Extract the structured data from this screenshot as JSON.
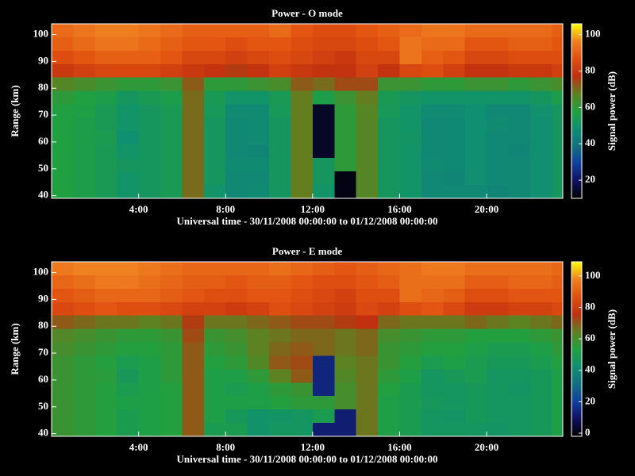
{
  "chart_data": [
    {
      "type": "heatmap",
      "title": "Power - O mode",
      "xlabel": "Universal time - 30/11/2008 00:00:00 to 01/12/2008 00:00:00",
      "ylabel": "Range (km)",
      "colorbar_label": "Signal power (dB)",
      "xlim": [
        0,
        23.5
      ],
      "ylim": [
        39,
        104
      ],
      "clim": [
        10,
        106
      ],
      "xticks": [
        {
          "value": 4,
          "label": "4:00"
        },
        {
          "value": 8,
          "label": "8:00"
        },
        {
          "value": 12,
          "label": "12:00"
        },
        {
          "value": 16,
          "label": "16:00"
        },
        {
          "value": 20,
          "label": "20:00"
        }
      ],
      "yticks": [
        40,
        50,
        60,
        70,
        80,
        90,
        100
      ],
      "cticks": [
        20,
        40,
        60,
        80,
        100
      ],
      "colors": [
        "#000000",
        "#101060",
        "#1040a0",
        "#107080",
        "#109070",
        "#20a040",
        "#608020",
        "#c03010",
        "#e05010",
        "#f08020",
        "#ffff00"
      ],
      "xbins": [
        0,
        1,
        2,
        3,
        4,
        5,
        6,
        7,
        8,
        9,
        10,
        11,
        12,
        13,
        14,
        15,
        16,
        17,
        18,
        19,
        20,
        21,
        22,
        23,
        23.5
      ],
      "ybins": [
        39,
        44,
        49,
        54,
        59,
        64,
        69,
        74,
        79,
        84,
        89,
        94,
        99,
        104
      ],
      "values": [
        [
          58,
          56,
          54,
          50,
          52,
          54,
          70,
          50,
          46,
          47,
          52,
          68,
          50,
          12,
          66,
          52,
          50,
          46,
          46,
          46,
          45,
          46,
          48,
          52
        ],
        [
          58,
          56,
          54,
          50,
          52,
          54,
          70,
          52,
          46,
          46,
          52,
          68,
          52,
          12,
          66,
          52,
          50,
          46,
          45,
          48,
          46,
          46,
          48,
          52
        ],
        [
          58,
          56,
          54,
          52,
          52,
          54,
          70,
          52,
          47,
          47,
          52,
          68,
          52,
          60,
          66,
          52,
          50,
          47,
          46,
          48,
          46,
          46,
          48,
          52
        ],
        [
          58,
          56,
          54,
          50,
          52,
          54,
          70,
          52,
          46,
          45,
          52,
          68,
          14,
          60,
          66,
          52,
          50,
          46,
          46,
          48,
          46,
          45,
          48,
          52
        ],
        [
          58,
          56,
          55,
          48,
          52,
          54,
          70,
          52,
          46,
          47,
          52,
          68,
          14,
          60,
          66,
          52,
          51,
          46,
          46,
          48,
          46,
          46,
          48,
          52
        ],
        [
          58,
          56,
          54,
          50,
          52,
          54,
          70,
          52,
          46,
          47,
          52,
          68,
          14,
          60,
          66,
          52,
          50,
          46,
          46,
          48,
          47,
          46,
          48,
          52
        ],
        [
          58,
          57,
          54,
          50,
          52,
          54,
          70,
          53,
          47,
          47,
          53,
          68,
          14,
          60,
          66,
          53,
          50,
          47,
          47,
          48,
          46,
          46,
          49,
          52
        ],
        [
          60,
          58,
          56,
          52,
          54,
          56,
          70,
          54,
          50,
          50,
          54,
          68,
          56,
          62,
          68,
          54,
          52,
          50,
          50,
          50,
          50,
          50,
          52,
          56
        ],
        [
          66,
          64,
          62,
          60,
          60,
          62,
          72,
          60,
          60,
          62,
          64,
          72,
          70,
          74,
          74,
          62,
          62,
          60,
          60,
          62,
          62,
          60,
          62,
          64
        ],
        [
          80,
          82,
          84,
          84,
          84,
          82,
          80,
          78,
          76,
          78,
          82,
          80,
          78,
          78,
          82,
          78,
          84,
          86,
          82,
          78,
          78,
          80,
          80,
          82
        ],
        [
          86,
          88,
          90,
          90,
          90,
          88,
          84,
          84,
          82,
          84,
          86,
          84,
          82,
          80,
          84,
          84,
          94,
          90,
          88,
          84,
          84,
          86,
          86,
          86
        ],
        [
          90,
          92,
          94,
          94,
          92,
          90,
          88,
          88,
          86,
          88,
          88,
          86,
          84,
          84,
          86,
          88,
          94,
          92,
          92,
          88,
          88,
          90,
          90,
          88
        ],
        [
          92,
          94,
          96,
          96,
          94,
          92,
          90,
          90,
          90,
          90,
          92,
          88,
          86,
          86,
          88,
          90,
          92,
          94,
          94,
          92,
          92,
          92,
          92,
          90
        ]
      ]
    },
    {
      "type": "heatmap",
      "title": "Power - E mode",
      "xlabel": "Universal time - 30/11/2008 00:00:00 to 01/12/2008 00:00:00",
      "ylabel": "Range (km)",
      "colorbar_label": "Signal power (dB)",
      "xlim": [
        0,
        23.5
      ],
      "ylim": [
        39,
        104
      ],
      "clim": [
        -2,
        109
      ],
      "xticks": [
        {
          "value": 4,
          "label": "4:00"
        },
        {
          "value": 8,
          "label": "8:00"
        },
        {
          "value": 12,
          "label": "12:00"
        },
        {
          "value": 16,
          "label": "16:00"
        },
        {
          "value": 20,
          "label": "20:00"
        }
      ],
      "yticks": [
        40,
        50,
        60,
        70,
        80,
        90,
        100
      ],
      "cticks": [
        0,
        20,
        40,
        60,
        80,
        100
      ],
      "colors": [
        "#000000",
        "#101060",
        "#1040a0",
        "#107080",
        "#109070",
        "#20a040",
        "#608020",
        "#c03010",
        "#e05010",
        "#f08020",
        "#ffff00"
      ],
      "xbins": [
        0,
        1,
        2,
        3,
        4,
        5,
        6,
        7,
        8,
        9,
        10,
        11,
        12,
        13,
        14,
        15,
        16,
        17,
        18,
        19,
        20,
        21,
        22,
        23,
        23.5
      ],
      "ybins": [
        39,
        44,
        49,
        54,
        59,
        64,
        69,
        74,
        79,
        84,
        89,
        94,
        99,
        104
      ],
      "values": [
        [
          58,
          56,
          54,
          50,
          52,
          54,
          70,
          50,
          50,
          44,
          46,
          46,
          12,
          12,
          66,
          52,
          50,
          46,
          46,
          46,
          45,
          46,
          48,
          52
        ],
        [
          58,
          56,
          54,
          50,
          52,
          54,
          70,
          52,
          48,
          44,
          45,
          46,
          50,
          12,
          66,
          52,
          50,
          46,
          45,
          48,
          46,
          46,
          48,
          52
        ],
        [
          58,
          56,
          54,
          52,
          52,
          54,
          70,
          52,
          52,
          52,
          54,
          56,
          56,
          60,
          66,
          52,
          50,
          47,
          46,
          48,
          46,
          46,
          48,
          52
        ],
        [
          58,
          56,
          54,
          50,
          52,
          54,
          70,
          52,
          50,
          52,
          56,
          58,
          14,
          60,
          66,
          54,
          50,
          46,
          46,
          48,
          46,
          45,
          48,
          52
        ],
        [
          58,
          56,
          55,
          48,
          52,
          56,
          70,
          52,
          52,
          56,
          64,
          70,
          14,
          62,
          66,
          56,
          52,
          46,
          48,
          50,
          46,
          46,
          48,
          52
        ],
        [
          58,
          56,
          54,
          50,
          52,
          56,
          70,
          54,
          56,
          62,
          70,
          72,
          14,
          64,
          66,
          58,
          54,
          50,
          52,
          50,
          48,
          48,
          50,
          54
        ],
        [
          60,
          58,
          56,
          54,
          54,
          56,
          70,
          56,
          58,
          64,
          68,
          70,
          68,
          66,
          68,
          58,
          56,
          54,
          54,
          52,
          50,
          50,
          52,
          56
        ],
        [
          62,
          60,
          58,
          56,
          56,
          58,
          72,
          58,
          60,
          64,
          66,
          68,
          68,
          66,
          68,
          60,
          58,
          56,
          56,
          54,
          54,
          54,
          56,
          58
        ],
        [
          70,
          68,
          66,
          66,
          64,
          66,
          74,
          66,
          66,
          68,
          70,
          72,
          72,
          74,
          76,
          68,
          66,
          66,
          66,
          68,
          66,
          64,
          66,
          68
        ],
        [
          84,
          86,
          88,
          86,
          86,
          84,
          82,
          82,
          80,
          82,
          86,
          84,
          82,
          80,
          84,
          82,
          86,
          88,
          84,
          80,
          80,
          82,
          82,
          84
        ],
        [
          88,
          90,
          92,
          92,
          92,
          90,
          88,
          86,
          86,
          88,
          88,
          86,
          84,
          82,
          86,
          86,
          94,
          92,
          90,
          86,
          86,
          88,
          88,
          88
        ],
        [
          92,
          94,
          96,
          96,
          94,
          92,
          90,
          90,
          88,
          90,
          90,
          88,
          86,
          86,
          88,
          90,
          94,
          94,
          94,
          90,
          90,
          92,
          92,
          90
        ],
        [
          96,
          98,
          98,
          98,
          96,
          94,
          92,
          92,
          92,
          92,
          94,
          92,
          90,
          88,
          90,
          92,
          94,
          96,
          96,
          94,
          94,
          94,
          94,
          92
        ]
      ]
    }
  ]
}
